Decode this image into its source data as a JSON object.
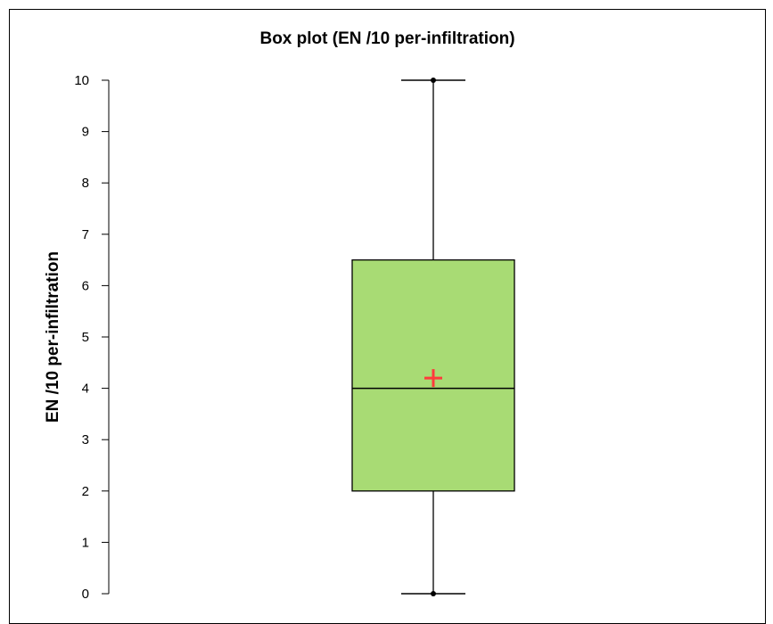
{
  "chart_data": {
    "type": "box",
    "title": "Box plot (EN /10 per-infiltration)",
    "xlabel": "",
    "ylabel": "EN /10 per-infiltration",
    "ylim": [
      0,
      10
    ],
    "yticks": [
      "0",
      "1",
      "2",
      "3",
      "4",
      "5",
      "6",
      "7",
      "8",
      "9",
      "10"
    ],
    "grid": false,
    "series": [
      {
        "min": 0,
        "q1": 2,
        "median": 4,
        "q3": 6.5,
        "max": 10,
        "mean": 4.2
      }
    ],
    "colors": {
      "box_fill": "#a8db74",
      "mean_marker": "#ff3b3b",
      "lines": "#000000"
    }
  }
}
